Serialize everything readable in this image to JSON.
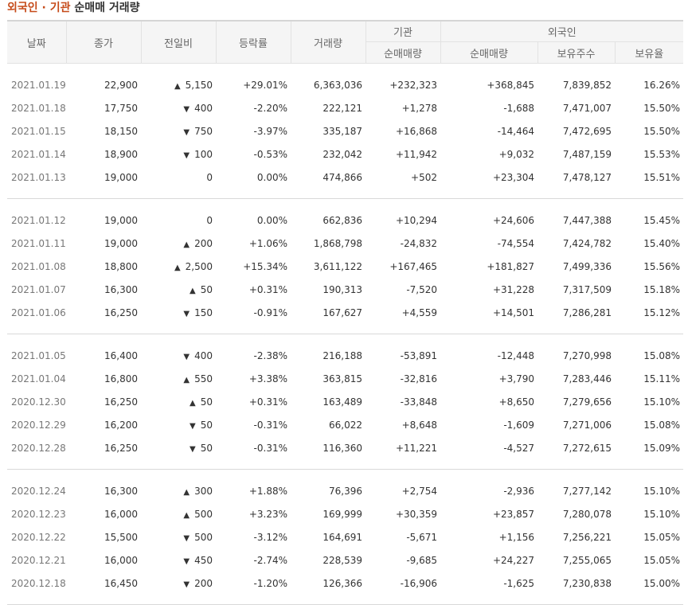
{
  "title": {
    "accent": "외국인 · 기관",
    "rest": "순매매 거래량"
  },
  "headers": {
    "date": "날짜",
    "close": "종가",
    "change": "전일비",
    "rate": "등락률",
    "volume": "거래량",
    "institution_group": "기관",
    "institution_net": "순매매량",
    "foreign_group": "외국인",
    "foreign_net": "순매매량",
    "foreign_holdings": "보유주수",
    "foreign_ratio": "보유율"
  },
  "colors": {
    "up": "#d0021b",
    "down": "#1a5fb4",
    "title_accent": "#c64b1a"
  },
  "groups": [
    {
      "rows": [
        {
          "date": "2021.01.19",
          "close": "22,900",
          "dir": "up",
          "change": "5,150",
          "rate": "+29.01%",
          "volume": "6,363,036",
          "inst": "+232,323",
          "foreign": "+368,845",
          "holdings": "7,839,852",
          "ratio": "16.26%"
        },
        {
          "date": "2021.01.18",
          "close": "17,750",
          "dir": "down",
          "change": "400",
          "rate": "-2.20%",
          "volume": "222,121",
          "inst": "+1,278",
          "foreign": "-1,688",
          "holdings": "7,471,007",
          "ratio": "15.50%"
        },
        {
          "date": "2021.01.15",
          "close": "18,150",
          "dir": "down",
          "change": "750",
          "rate": "-3.97%",
          "volume": "335,187",
          "inst": "+16,868",
          "foreign": "-14,464",
          "holdings": "7,472,695",
          "ratio": "15.50%"
        },
        {
          "date": "2021.01.14",
          "close": "18,900",
          "dir": "down",
          "change": "100",
          "rate": "-0.53%",
          "volume": "232,042",
          "inst": "+11,942",
          "foreign": "+9,032",
          "holdings": "7,487,159",
          "ratio": "15.53%"
        },
        {
          "date": "2021.01.13",
          "close": "19,000",
          "dir": "zero",
          "change": "0",
          "rate": "0.00%",
          "volume": "474,866",
          "inst": "+502",
          "foreign": "+23,304",
          "holdings": "7,478,127",
          "ratio": "15.51%"
        }
      ]
    },
    {
      "rows": [
        {
          "date": "2021.01.12",
          "close": "19,000",
          "dir": "zero",
          "change": "0",
          "rate": "0.00%",
          "volume": "662,836",
          "inst": "+10,294",
          "foreign": "+24,606",
          "holdings": "7,447,388",
          "ratio": "15.45%"
        },
        {
          "date": "2021.01.11",
          "close": "19,000",
          "dir": "up",
          "change": "200",
          "rate": "+1.06%",
          "volume": "1,868,798",
          "inst": "-24,832",
          "foreign": "-74,554",
          "holdings": "7,424,782",
          "ratio": "15.40%"
        },
        {
          "date": "2021.01.08",
          "close": "18,800",
          "dir": "up",
          "change": "2,500",
          "rate": "+15.34%",
          "volume": "3,611,122",
          "inst": "+167,465",
          "foreign": "+181,827",
          "holdings": "7,499,336",
          "ratio": "15.56%"
        },
        {
          "date": "2021.01.07",
          "close": "16,300",
          "dir": "up",
          "change": "50",
          "rate": "+0.31%",
          "volume": "190,313",
          "inst": "-7,520",
          "foreign": "+31,228",
          "holdings": "7,317,509",
          "ratio": "15.18%"
        },
        {
          "date": "2021.01.06",
          "close": "16,250",
          "dir": "down",
          "change": "150",
          "rate": "-0.91%",
          "volume": "167,627",
          "inst": "+4,559",
          "foreign": "+14,501",
          "holdings": "7,286,281",
          "ratio": "15.12%"
        }
      ]
    },
    {
      "rows": [
        {
          "date": "2021.01.05",
          "close": "16,400",
          "dir": "down",
          "change": "400",
          "rate": "-2.38%",
          "volume": "216,188",
          "inst": "-53,891",
          "foreign": "-12,448",
          "holdings": "7,270,998",
          "ratio": "15.08%"
        },
        {
          "date": "2021.01.04",
          "close": "16,800",
          "dir": "up",
          "change": "550",
          "rate": "+3.38%",
          "volume": "363,815",
          "inst": "-32,816",
          "foreign": "+3,790",
          "holdings": "7,283,446",
          "ratio": "15.11%"
        },
        {
          "date": "2020.12.30",
          "close": "16,250",
          "dir": "up",
          "change": "50",
          "rate": "+0.31%",
          "volume": "163,489",
          "inst": "-33,848",
          "foreign": "+8,650",
          "holdings": "7,279,656",
          "ratio": "15.10%"
        },
        {
          "date": "2020.12.29",
          "close": "16,200",
          "dir": "down",
          "change": "50",
          "rate": "-0.31%",
          "volume": "66,022",
          "inst": "+8,648",
          "foreign": "-1,609",
          "holdings": "7,271,006",
          "ratio": "15.08%"
        },
        {
          "date": "2020.12.28",
          "close": "16,250",
          "dir": "down",
          "change": "50",
          "rate": "-0.31%",
          "volume": "116,360",
          "inst": "+11,221",
          "foreign": "-4,527",
          "holdings": "7,272,615",
          "ratio": "15.09%"
        }
      ]
    },
    {
      "rows": [
        {
          "date": "2020.12.24",
          "close": "16,300",
          "dir": "up",
          "change": "300",
          "rate": "+1.88%",
          "volume": "76,396",
          "inst": "+2,754",
          "foreign": "-2,936",
          "holdings": "7,277,142",
          "ratio": "15.10%"
        },
        {
          "date": "2020.12.23",
          "close": "16,000",
          "dir": "up",
          "change": "500",
          "rate": "+3.23%",
          "volume": "169,999",
          "inst": "+30,359",
          "foreign": "+23,857",
          "holdings": "7,280,078",
          "ratio": "15.10%"
        },
        {
          "date": "2020.12.22",
          "close": "15,500",
          "dir": "down",
          "change": "500",
          "rate": "-3.12%",
          "volume": "164,691",
          "inst": "-5,671",
          "foreign": "+1,156",
          "holdings": "7,256,221",
          "ratio": "15.05%"
        },
        {
          "date": "2020.12.21",
          "close": "16,000",
          "dir": "down",
          "change": "450",
          "rate": "-2.74%",
          "volume": "228,539",
          "inst": "-9,685",
          "foreign": "+24,227",
          "holdings": "7,255,065",
          "ratio": "15.05%"
        },
        {
          "date": "2020.12.18",
          "close": "16,450",
          "dir": "down",
          "change": "200",
          "rate": "-1.20%",
          "volume": "126,366",
          "inst": "-16,906",
          "foreign": "-1,625",
          "holdings": "7,230,838",
          "ratio": "15.00%"
        }
      ]
    }
  ]
}
